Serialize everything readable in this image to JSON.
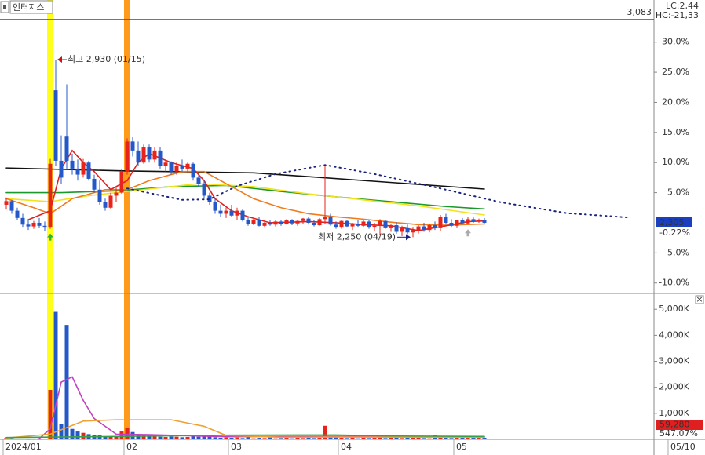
{
  "chart_data": {
    "type": "candlestick",
    "title": "인터지스",
    "lc_label": "LC:2,44",
    "hc_label": "HC:-21,33",
    "x_labels": [
      {
        "index": 0,
        "label": "2024/01"
      },
      {
        "index": 22,
        "label": "02"
      },
      {
        "index": 41,
        "label": "03"
      },
      {
        "index": 61,
        "label": "04"
      },
      {
        "index": 82,
        "label": "05"
      },
      {
        "index": 121,
        "label": "05/10"
      }
    ],
    "up_color": "#e8231b",
    "down_color": "#2458c8",
    "candles": [
      [
        3.0,
        4.2,
        2.2,
        3.6
      ],
      [
        3.6,
        3.8,
        1.5,
        2.0
      ],
      [
        2.0,
        2.5,
        0.5,
        0.8
      ],
      [
        0.8,
        1.5,
        -0.8,
        -0.3
      ],
      [
        -0.3,
        0.5,
        -1.2,
        -0.6
      ],
      [
        -0.6,
        0.3,
        -1.0,
        0.0
      ],
      [
        0.0,
        0.8,
        -0.9,
        -0.5
      ],
      [
        -0.5,
        0.2,
        -1.3,
        -0.8
      ],
      [
        -0.8,
        10.6,
        -1.0,
        9.8
      ],
      [
        22.0,
        27.1,
        9.5,
        10.3
      ],
      [
        10.3,
        14.5,
        6.5,
        7.5
      ],
      [
        14.3,
        23.0,
        9.0,
        10.3
      ],
      [
        10.3,
        11.5,
        8.0,
        9.0
      ],
      [
        9.0,
        10.5,
        7.0,
        8.0
      ],
      [
        8.0,
        10.6,
        7.5,
        10.0
      ],
      [
        10.0,
        10.3,
        7.0,
        7.3
      ],
      [
        7.3,
        8.0,
        5.0,
        5.5
      ],
      [
        5.5,
        7.0,
        3.0,
        3.5
      ],
      [
        3.5,
        4.0,
        2.0,
        2.5
      ],
      [
        2.5,
        5.0,
        2.3,
        4.5
      ],
      [
        4.5,
        6.0,
        3.5,
        5.0
      ],
      [
        5.0,
        9.0,
        4.8,
        8.5
      ],
      [
        8.5,
        14.0,
        8.0,
        13.5
      ],
      [
        13.5,
        14.2,
        11.0,
        12.0
      ],
      [
        12.0,
        13.5,
        9.5,
        10.0
      ],
      [
        10.0,
        13.0,
        9.8,
        12.5
      ],
      [
        12.5,
        13.0,
        10.0,
        10.5
      ],
      [
        10.5,
        12.5,
        10.0,
        12.0
      ],
      [
        12.0,
        12.5,
        9.0,
        9.5
      ],
      [
        9.5,
        10.5,
        8.5,
        10.0
      ],
      [
        10.0,
        10.2,
        8.0,
        8.5
      ],
      [
        8.5,
        10.0,
        8.0,
        9.5
      ],
      [
        9.5,
        10.5,
        8.5,
        9.0
      ],
      [
        9.0,
        10.0,
        8.2,
        9.8
      ],
      [
        9.8,
        10.0,
        7.0,
        7.5
      ],
      [
        7.5,
        8.0,
        6.0,
        6.5
      ],
      [
        6.5,
        7.0,
        4.0,
        4.5
      ],
      [
        4.5,
        5.0,
        3.0,
        3.5
      ],
      [
        3.5,
        4.0,
        1.5,
        2.0
      ],
      [
        2.0,
        3.0,
        1.0,
        1.5
      ],
      [
        1.5,
        2.5,
        0.8,
        2.0
      ],
      [
        2.0,
        3.0,
        1.0,
        1.2
      ],
      [
        1.2,
        2.5,
        0.5,
        2.0
      ],
      [
        2.0,
        2.2,
        0.2,
        0.5
      ],
      [
        0.5,
        1.0,
        -0.5,
        -0.2
      ],
      [
        -0.2,
        0.8,
        -0.4,
        0.5
      ],
      [
        0.5,
        1.0,
        -0.6,
        -0.5
      ],
      [
        -0.5,
        0.3,
        -0.8,
        0.0
      ],
      [
        0.0,
        0.5,
        -0.5,
        -0.3
      ],
      [
        -0.3,
        0.4,
        -0.6,
        0.2
      ],
      [
        0.2,
        0.5,
        -0.5,
        -0.2
      ],
      [
        -0.2,
        0.6,
        -0.3,
        0.4
      ],
      [
        0.4,
        0.6,
        -0.4,
        -0.1
      ],
      [
        -0.1,
        0.5,
        -0.5,
        0.3
      ],
      [
        0.3,
        0.8,
        -0.2,
        0.7
      ],
      [
        0.7,
        1.0,
        -0.3,
        0.0
      ],
      [
        0.0,
        0.5,
        -0.6,
        -0.4
      ],
      [
        -0.4,
        0.8,
        -0.5,
        0.6
      ],
      [
        0.6,
        9.5,
        -0.2,
        1.0
      ],
      [
        1.0,
        1.5,
        -0.5,
        -0.3
      ],
      [
        -0.3,
        0.2,
        -1.0,
        -0.8
      ],
      [
        -0.8,
        0.5,
        -1.0,
        0.3
      ],
      [
        0.3,
        0.5,
        -0.8,
        -0.6
      ],
      [
        -0.6,
        0.0,
        -1.2,
        -0.2
      ],
      [
        -0.2,
        0.4,
        -0.8,
        -0.5
      ],
      [
        -0.5,
        0.5,
        -0.8,
        0.2
      ],
      [
        0.2,
        0.4,
        -1.0,
        -0.8
      ],
      [
        -0.8,
        0.0,
        -1.3,
        -0.5
      ],
      [
        -0.5,
        0.6,
        -2.0,
        0.3
      ],
      [
        0.3,
        0.5,
        -1.0,
        -0.9
      ],
      [
        -0.9,
        -0.2,
        -1.5,
        -0.4
      ],
      [
        -0.4,
        0.1,
        -1.8,
        -1.5
      ],
      [
        -1.5,
        -0.5,
        -2.2,
        -0.9
      ],
      [
        -0.9,
        -0.3,
        -1.9,
        -1.6
      ],
      [
        -1.6,
        -0.8,
        -2.39,
        -1.2
      ],
      [
        -1.2,
        -0.4,
        -1.8,
        -0.6
      ],
      [
        -0.6,
        0.0,
        -1.5,
        -1.2
      ],
      [
        -1.2,
        -0.2,
        -1.6,
        -0.4
      ],
      [
        -0.4,
        0.2,
        -1.2,
        -0.9
      ],
      [
        -0.9,
        1.3,
        -1.4,
        1.0
      ],
      [
        1.0,
        1.5,
        -0.3,
        0.0
      ],
      [
        0.0,
        0.6,
        -0.8,
        -0.5
      ],
      [
        -0.5,
        0.5,
        -0.9,
        0.4
      ],
      [
        0.4,
        0.8,
        -0.3,
        -0.1
      ],
      [
        -0.1,
        1.0,
        -0.3,
        0.6
      ],
      [
        0.6,
        0.9,
        0.0,
        0.2
      ],
      [
        0.2,
        0.7,
        0.0,
        0.5
      ],
      [
        0.5,
        0.8,
        -0.3,
        0.0
      ]
    ],
    "ylim": [
      -11.6,
      37
    ],
    "yticks": [
      {
        "value": 30,
        "label": "30.0%"
      },
      {
        "value": 25,
        "label": "25.0%"
      },
      {
        "value": 20,
        "label": "20.0%"
      },
      {
        "value": 15,
        "label": "15.0%"
      },
      {
        "value": 10,
        "label": "10.0%"
      },
      {
        "value": 5,
        "label": "5.0%"
      },
      {
        "value": -5,
        "label": "-5.0%"
      },
      {
        "value": -10,
        "label": "-10.0%"
      }
    ],
    "lines": [
      {
        "color": "#111111",
        "x": [
          0,
          22,
          45,
          87
        ],
        "values": [
          9.1,
          8.6,
          8.3,
          5.6
        ]
      },
      {
        "color": "#1a9a2a",
        "x": [
          0,
          10,
          20,
          30,
          40,
          50,
          60,
          70,
          80,
          87
        ],
        "values": [
          5.0,
          5.0,
          5.3,
          6.0,
          6.2,
          5.2,
          4.3,
          3.5,
          2.7,
          2.3
        ]
      },
      {
        "color": "#f2e21c",
        "x": [
          0,
          8,
          15,
          25,
          35,
          45,
          55,
          65,
          75,
          87
        ],
        "values": [
          4.0,
          3.5,
          4.5,
          5.5,
          6.5,
          6.0,
          4.8,
          3.8,
          2.8,
          1.3
        ]
      },
      {
        "color": "#f07a1c",
        "x": [
          0,
          5,
          8,
          12,
          18,
          22,
          26,
          32,
          36,
          40,
          45,
          50,
          55,
          60,
          65,
          70,
          75,
          80,
          87
        ],
        "values": [
          4.0,
          2.5,
          1.5,
          4.0,
          5.5,
          5.5,
          7.0,
          8.5,
          8.5,
          6.5,
          4.0,
          2.5,
          1.5,
          1.0,
          0.6,
          0.1,
          -0.3,
          -0.4,
          -0.2
        ]
      },
      {
        "color": "#e02020",
        "x": [
          4,
          8,
          10,
          12,
          14,
          16,
          19,
          22,
          24,
          26,
          30,
          34,
          36,
          38,
          41,
          44,
          48,
          55,
          60,
          65,
          70,
          75,
          80,
          84,
          87
        ],
        "values": [
          0.5,
          2.0,
          9.0,
          12.0,
          10.0,
          8.5,
          5.5,
          7.0,
          10.0,
          11.5,
          10.0,
          9.0,
          7.0,
          4.0,
          2.0,
          1.0,
          0.0,
          0.2,
          0.0,
          -0.3,
          -0.5,
          -1.3,
          -0.5,
          0.2,
          0.3
        ]
      },
      {
        "color": "#1a237e",
        "dash": true,
        "x": [
          22,
          32,
          37,
          42,
          49,
          58,
          67,
          79,
          90,
          102,
          113
        ],
        "values": [
          5.7,
          3.8,
          3.9,
          6.1,
          8.1,
          9.6,
          8.1,
          5.7,
          3.4,
          1.6,
          0.9
        ]
      }
    ],
    "highlights": [
      {
        "index": 8,
        "color": "#ffff1a"
      },
      {
        "index": 22,
        "color": "#ff9a1a"
      }
    ],
    "signals": [
      {
        "index": 8,
        "color": "#2db52d"
      },
      {
        "index": 84,
        "color": "#aaaaaa"
      }
    ],
    "ref_line": {
      "value": 33.75,
      "label": "3,083",
      "color": "#8b1a8b"
    },
    "annotations": [
      {
        "text": "최고 2,930 (01/15)",
        "index": 9,
        "value": 27.1,
        "color": "#d01010",
        "side": "right"
      },
      {
        "text": "최저 2,250 (04/19)",
        "index": 74,
        "value": -2.39,
        "color": "#1a237e",
        "side": "left"
      }
    ],
    "last": {
      "value": 0,
      "label": "2,305",
      "change": "-0.22%"
    },
    "volume": {
      "values": [
        60,
        40,
        30,
        30,
        20,
        25,
        20,
        30,
        1900,
        4900,
        600,
        4400,
        400,
        300,
        250,
        200,
        180,
        150,
        120,
        100,
        110,
        300,
        450,
        280,
        200,
        150,
        140,
        120,
        100,
        90,
        110,
        100,
        80,
        90,
        150,
        100,
        120,
        130,
        80,
        60,
        70,
        60,
        70,
        50,
        80,
        40,
        60,
        50,
        70,
        40,
        50,
        60,
        40,
        60,
        50,
        70,
        50,
        60,
        520,
        90,
        80,
        60,
        50,
        70,
        40,
        90,
        50,
        60,
        80,
        50,
        60,
        70,
        50,
        80,
        60,
        70,
        50,
        40,
        150,
        90,
        60,
        50,
        100,
        80,
        90,
        60,
        70,
        60
      ],
      "ylim": [
        0,
        5550
      ],
      "yticks": [
        {
          "value": 5000,
          "label": "5,000K"
        },
        {
          "value": 4000,
          "label": "4,000K"
        },
        {
          "value": 3000,
          "label": "3,000K"
        },
        {
          "value": 2000,
          "label": "2,000K"
        },
        {
          "value": 1000,
          "label": "1,000K"
        }
      ],
      "lines": [
        {
          "color": "#c040c0",
          "x": [
            6,
            8,
            10,
            12,
            14,
            16,
            20,
            26,
            40,
            60,
            87
          ],
          "values": [
            30,
            400,
            2200,
            2400,
            1500,
            800,
            200,
            180,
            100,
            120,
            80
          ]
        },
        {
          "color": "#f0a030",
          "x": [
            0,
            8,
            14,
            20,
            30,
            36,
            40,
            50,
            60,
            87
          ],
          "values": [
            50,
            200,
            700,
            750,
            750,
            500,
            150,
            80,
            90,
            80
          ]
        },
        {
          "color": "#3aa04a",
          "x": [
            0,
            20,
            40,
            60,
            70,
            87
          ],
          "values": [
            70,
            110,
            160,
            170,
            130,
            110
          ]
        }
      ],
      "last_label": "59,280",
      "ratio_label": "547.07%"
    }
  }
}
